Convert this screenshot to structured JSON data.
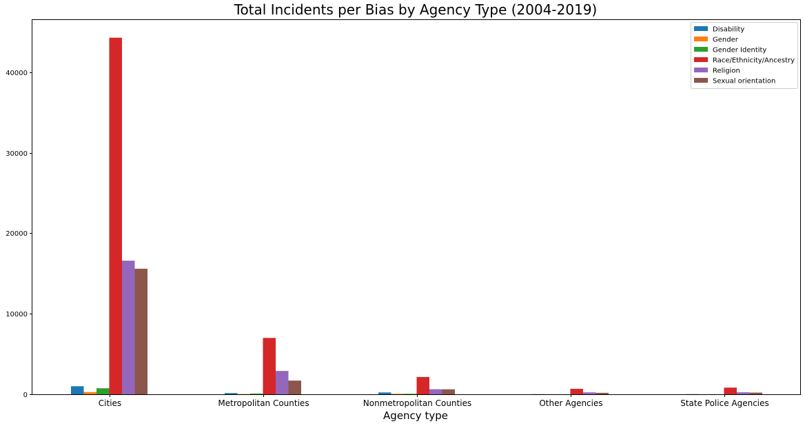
{
  "chart_data": {
    "type": "bar",
    "title": "Total Incidents per Bias by Agency Type (2004-2019)",
    "xlabel": "Agency type",
    "ylabel": "",
    "categories": [
      "Cities",
      "Metropolitan Counties",
      "Nonmetropolitan Counties",
      "Other Agencies",
      "State Police Agencies"
    ],
    "ylim": [
      0,
      46500
    ],
    "yticks": [
      0,
      10000,
      20000,
      30000,
      40000
    ],
    "legend_position": "top-right",
    "grid": false,
    "series": [
      {
        "name": "Disability",
        "color": "#1f77b4",
        "values": [
          1000,
          150,
          230,
          20,
          20
        ]
      },
      {
        "name": "Gender",
        "color": "#ff7f0e",
        "values": [
          280,
          30,
          60,
          10,
          10
        ]
      },
      {
        "name": "Gender Identity",
        "color": "#2ca02c",
        "values": [
          750,
          90,
          60,
          10,
          10
        ]
      },
      {
        "name": "Race/Ethnicity/Ancestry",
        "color": "#d62728",
        "values": [
          44300,
          7000,
          2150,
          680,
          830
        ]
      },
      {
        "name": "Religion",
        "color": "#9467bd",
        "values": [
          16600,
          2900,
          630,
          240,
          250
        ]
      },
      {
        "name": "Sexual orientation",
        "color": "#8c564b",
        "values": [
          15600,
          1700,
          620,
          180,
          210
        ]
      }
    ]
  }
}
